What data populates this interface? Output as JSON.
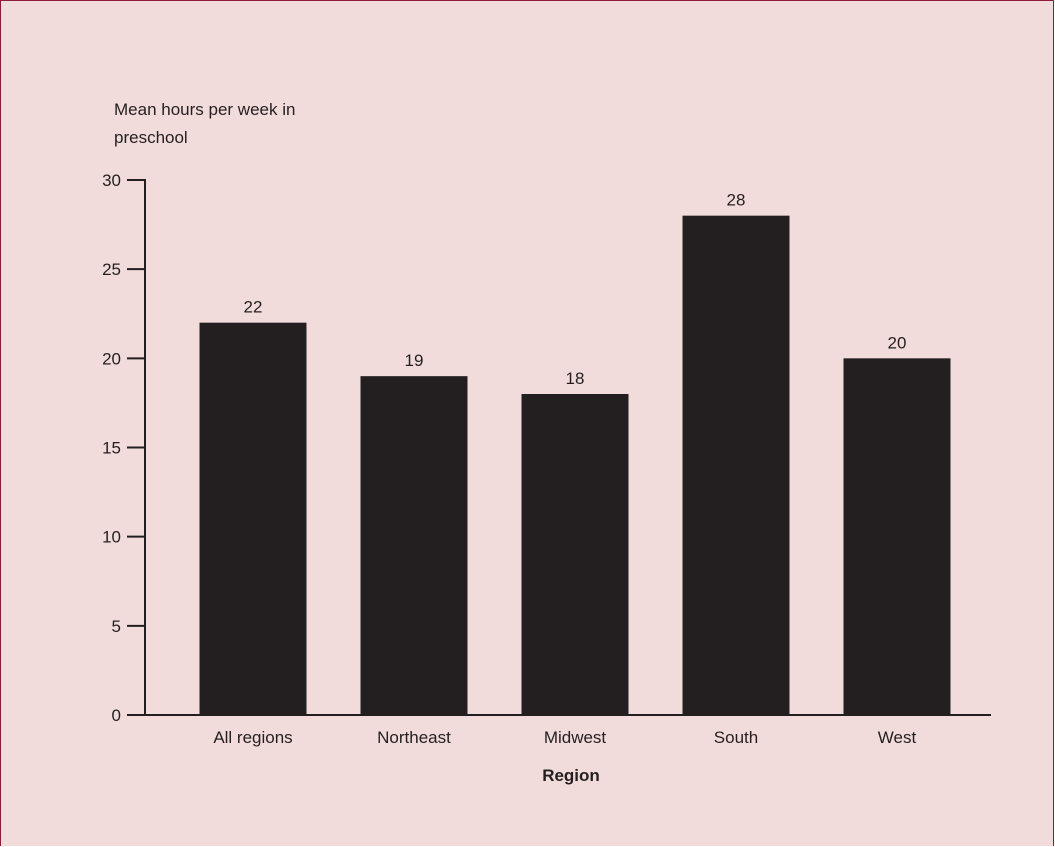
{
  "chart_data": {
    "type": "bar",
    "ylabel_lines": [
      "Mean hours per week in",
      "preschool"
    ],
    "xlabel": "Region",
    "categories": [
      "All regions",
      "Northeast",
      "Midwest",
      "South",
      "West"
    ],
    "values": [
      22,
      19,
      18,
      28,
      20
    ],
    "value_labels": [
      "22",
      "19",
      "18",
      "28",
      "20"
    ],
    "ylim": [
      0,
      30
    ],
    "y_ticks": [
      0,
      5,
      10,
      15,
      20,
      25,
      30
    ],
    "y_tick_labels": [
      "0",
      "5",
      "10",
      "15",
      "20",
      "25",
      "30"
    ],
    "grid": false,
    "legend": "none",
    "bar_color": "#231f20",
    "background_color": "#f2dcdb",
    "border_color": "#8f1c3c"
  }
}
